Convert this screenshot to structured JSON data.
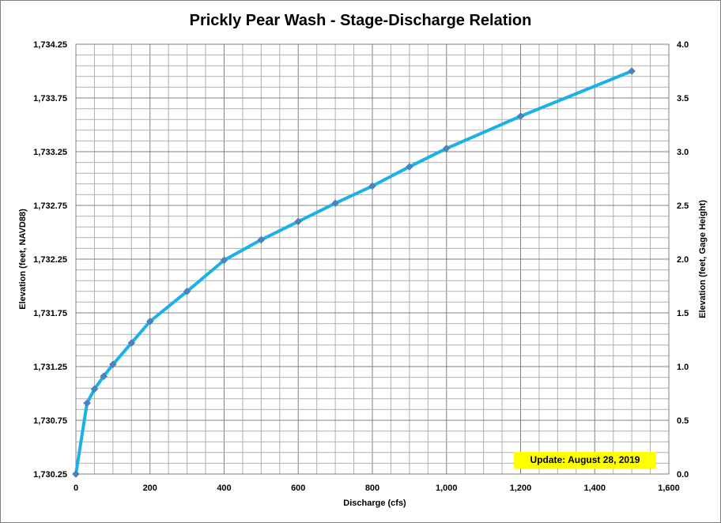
{
  "chart_data": {
    "type": "line",
    "title": "Prickly Pear Wash - Stage-Discharge Relation",
    "xlabel": "Discharge  (cfs)",
    "ylabel_left": "Elevation  (feet, NAVD88)",
    "ylabel_right": "Elevation  (feet, Gage Height)",
    "xlim": [
      0,
      1600
    ],
    "ylim_left": [
      1730.25,
      1734.25
    ],
    "ylim_right": [
      0.0,
      4.0
    ],
    "x_ticks": [
      "0",
      "200",
      "400",
      "600",
      "800",
      "1,000",
      "1,200",
      "1,400",
      "1,600"
    ],
    "y_left_ticks": [
      "1,730.25",
      "1,730.75",
      "1,731.25",
      "1,731.75",
      "1,732.25",
      "1,732.75",
      "1,733.25",
      "1,733.75",
      "1,734.25"
    ],
    "y_right_ticks": [
      "0.0",
      "0.5",
      "1.0",
      "1.5",
      "2.0",
      "2.5",
      "3.0",
      "3.5",
      "4.0"
    ],
    "grid": true,
    "series": [
      {
        "x": [
          0,
          30,
          50,
          75,
          100,
          150,
          200,
          300,
          400,
          500,
          600,
          700,
          800,
          900,
          1000,
          1200,
          1500
        ],
        "y": [
          0.0,
          0.66,
          0.79,
          0.91,
          1.02,
          1.22,
          1.42,
          1.7,
          1.99,
          2.18,
          2.35,
          2.52,
          2.68,
          2.86,
          3.03,
          3.33,
          3.75
        ]
      }
    ],
    "annotation": "Update: August 28, 2019"
  }
}
